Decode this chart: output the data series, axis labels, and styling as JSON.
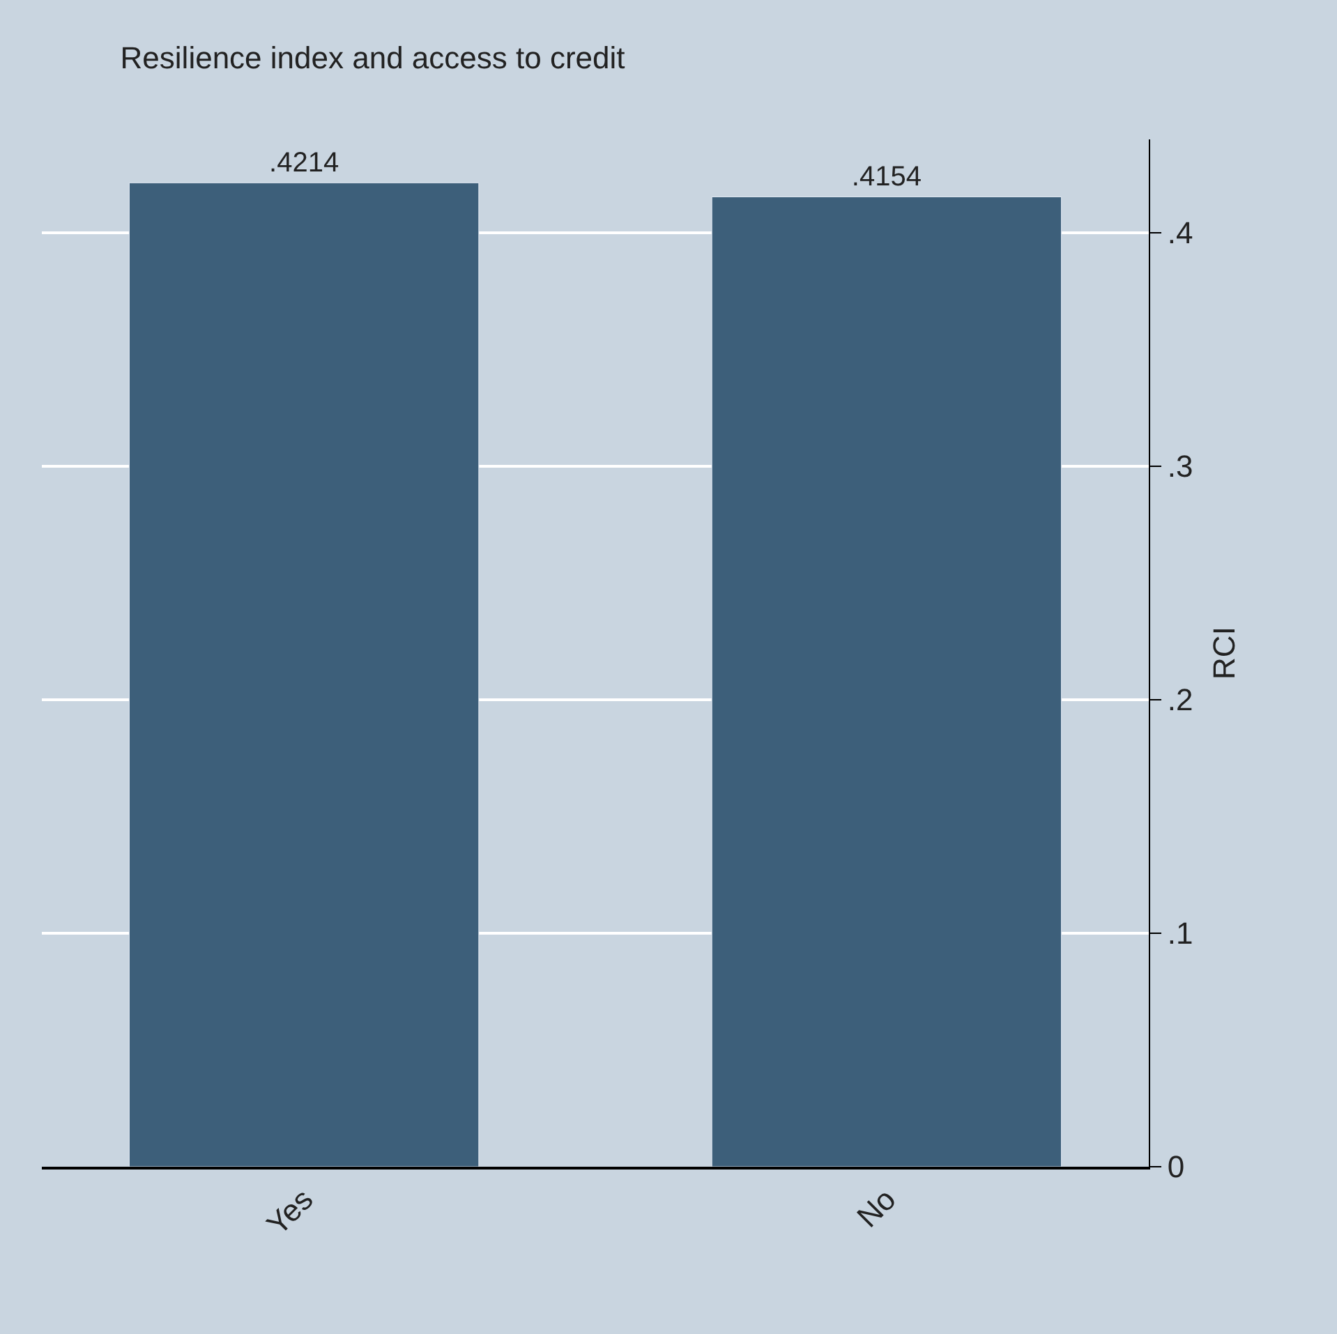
{
  "chart_data": {
    "type": "bar",
    "title": "Resilience index and access to credit",
    "ylabel": "RCI",
    "categories": [
      "Yes",
      "No"
    ],
    "values": [
      0.4214,
      0.4154
    ],
    "color": "#3d5f7a",
    "data_labels": true,
    "value_labels": [
      ".4214",
      ".4154"
    ],
    "ylim": [
      0,
      0.44
    ],
    "yticks": [
      0,
      {
        "value": 0.1,
        "label": ".1"
      },
      {
        "value": 0.2,
        "label": ".2"
      },
      {
        "value": 0.3,
        "label": ".3"
      },
      {
        "value": 0.4,
        "label": ".4"
      }
    ],
    "grid": "y"
  }
}
